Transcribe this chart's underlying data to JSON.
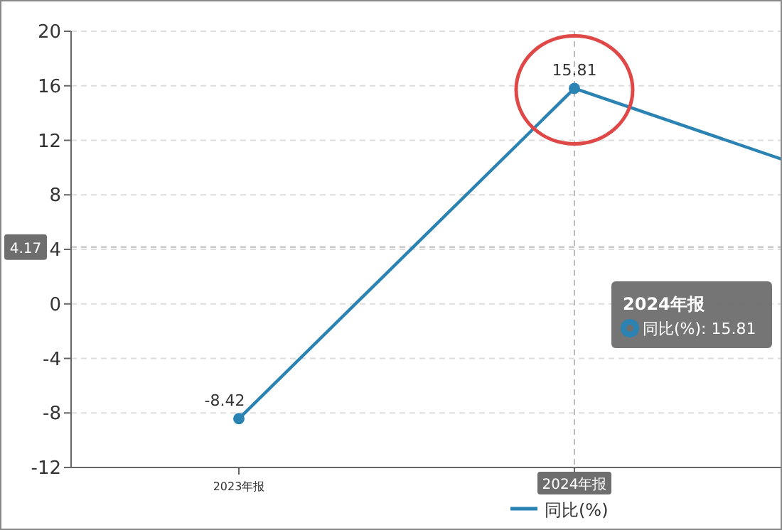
{
  "chart_data": {
    "type": "line",
    "categories": [
      "2023年报",
      "2024年报",
      null
    ],
    "series": [
      {
        "name": "同比(%)",
        "color": "#2b83b4",
        "values": [
          -8.42,
          15.81,
          7.4
        ],
        "value_labels": [
          "-8.42",
          "15.81",
          null
        ]
      }
    ],
    "ylim": [
      -12,
      20
    ],
    "yticks": [
      -12,
      -8,
      -4,
      0,
      4,
      8,
      12,
      16,
      20
    ],
    "grid": "y",
    "marker": "circle",
    "legend": "bottom",
    "ref_lines": [
      {
        "axis": "x",
        "value": "2024年报",
        "label": null
      },
      {
        "axis": "y",
        "value": 4.17,
        "label": "4.17"
      }
    ],
    "annotations": [
      "2024年报",
      "同比(%): 15.81"
    ]
  }
}
